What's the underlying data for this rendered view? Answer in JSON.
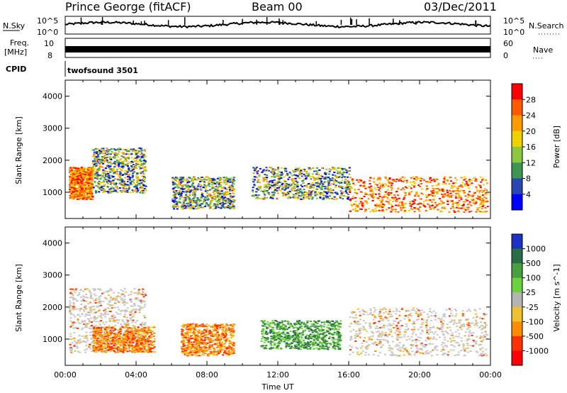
{
  "header": {
    "station": "Prince George (fitACF)",
    "beam": "Beam 00",
    "date": "03/Dec/2011"
  },
  "top_panels": {
    "nsky_label": "N.Sky",
    "nsky_ticks": [
      "10^5",
      "10^0"
    ],
    "nsearch_label": "N.Search",
    "nsearch_ticks": [
      "10^5",
      "10^0"
    ],
    "freq_label_1": "Freq.",
    "freq_label_2": "[MHz]",
    "freq_ticks": [
      "10",
      "8"
    ],
    "nave_label": "Nave",
    "nave_ticks": [
      "60",
      "0"
    ],
    "cpid_label": "CPID",
    "cpid_value": "twofsound 3501"
  },
  "chart_data": [
    {
      "type": "heatmap",
      "title": "Power",
      "ylabel": "Slant Range [km]",
      "x_unit": "Time UT (hours)",
      "xlim": [
        0,
        24
      ],
      "ylim": [
        180,
        4500
      ],
      "yticks": [
        "1000",
        "2000",
        "3000",
        "4000"
      ],
      "colorbar": {
        "label": "Power [dB]",
        "ticks": [
          "28",
          "24",
          "20",
          "16",
          "12",
          "8",
          "4"
        ],
        "colors": [
          "#ff0000",
          "#ff5a00",
          "#ff9a00",
          "#f0d000",
          "#8cc83c",
          "#3c9650",
          "#2846b4",
          "#0000ff"
        ]
      },
      "scatter_regions": [
        {
          "t": [
            0.2,
            1.5
          ],
          "r": [
            800,
            1800
          ],
          "level": "high"
        },
        {
          "t": [
            1.5,
            4.5
          ],
          "r": [
            1000,
            2400
          ],
          "level": "mid"
        },
        {
          "t": [
            6.0,
            9.5
          ],
          "r": [
            500,
            1500
          ],
          "level": "mid"
        },
        {
          "t": [
            10.5,
            16.0
          ],
          "r": [
            800,
            1800
          ],
          "level": "mid"
        },
        {
          "t": [
            16.0,
            23.8
          ],
          "r": [
            400,
            1500
          ],
          "level": "high"
        }
      ]
    },
    {
      "type": "heatmap",
      "title": "Velocity",
      "ylabel": "Slant Range [km]",
      "xlabel": "Time UT",
      "xlim": [
        0,
        24
      ],
      "ylim": [
        180,
        4500
      ],
      "yticks": [
        "1000",
        "2000",
        "3000",
        "4000"
      ],
      "xticks": [
        "00:00",
        "04:00",
        "08:00",
        "12:00",
        "16:00",
        "20:00",
        "00:00"
      ],
      "colorbar": {
        "label": "Velocity [m s^-1]",
        "ticks": [
          "1000",
          "500",
          "100",
          "25",
          "-25",
          "-100",
          "-500",
          "-1000"
        ],
        "colors": [
          "#1e32c8",
          "#2a6e46",
          "#46a03c",
          "#6ed23c",
          "#b4b4b4",
          "#f0c030",
          "#ff8c00",
          "#ff3000",
          "#ff0000"
        ]
      },
      "scatter_regions": [
        {
          "t": [
            0.2,
            4.5
          ],
          "r": [
            600,
            2600
          ],
          "level": "gray"
        },
        {
          "t": [
            1.5,
            5.0
          ],
          "r": [
            600,
            1400
          ],
          "level": "orange"
        },
        {
          "t": [
            6.5,
            9.5
          ],
          "r": [
            500,
            1500
          ],
          "level": "orange"
        },
        {
          "t": [
            11.0,
            15.5
          ],
          "r": [
            700,
            1600
          ],
          "level": "green"
        },
        {
          "t": [
            16.0,
            23.8
          ],
          "r": [
            500,
            2000
          ],
          "level": "gray"
        }
      ]
    }
  ]
}
